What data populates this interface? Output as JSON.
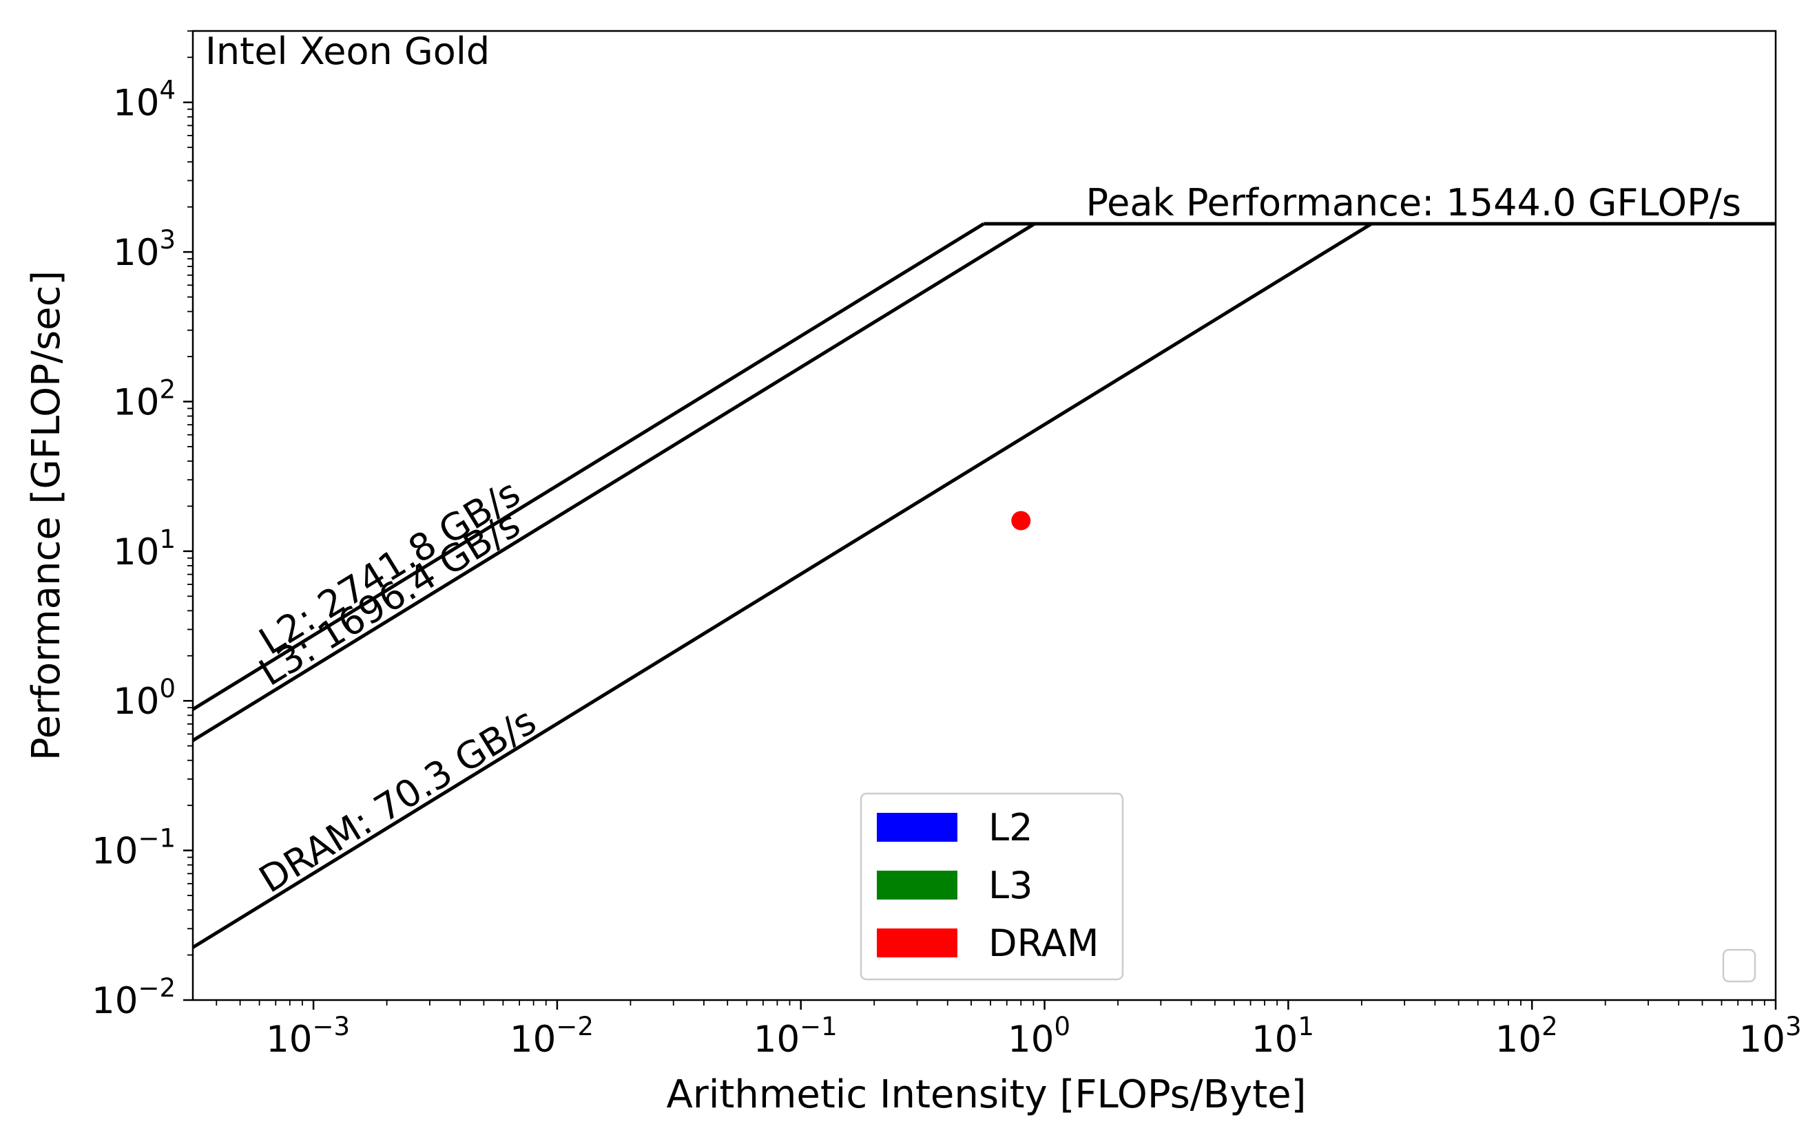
{
  "chart_data": {
    "type": "line",
    "title": "Intel Xeon Gold",
    "xlabel": "Arithmetic Intensity [FLOPs/Byte]",
    "ylabel": "Performance [GFLOP/sec]",
    "xscale": "log",
    "yscale": "log",
    "xlim": [
      0.00032,
      1000
    ],
    "ylim": [
      0.01,
      30000
    ],
    "x_ticks": [
      {
        "base": "10",
        "exp": "−3",
        "value": 0.001
      },
      {
        "base": "10",
        "exp": "−2",
        "value": 0.01
      },
      {
        "base": "10",
        "exp": "−1",
        "value": 0.1
      },
      {
        "base": "10",
        "exp": "0",
        "value": 1
      },
      {
        "base": "10",
        "exp": "1",
        "value": 10
      },
      {
        "base": "10",
        "exp": "2",
        "value": 100
      },
      {
        "base": "10",
        "exp": "3",
        "value": 1000
      }
    ],
    "y_ticks": [
      {
        "base": "10",
        "exp": "−2",
        "value": 0.01
      },
      {
        "base": "10",
        "exp": "−1",
        "value": 0.1
      },
      {
        "base": "10",
        "exp": "0",
        "value": 1
      },
      {
        "base": "10",
        "exp": "1",
        "value": 10
      },
      {
        "base": "10",
        "exp": "2",
        "value": 100
      },
      {
        "base": "10",
        "exp": "3",
        "value": 1000
      },
      {
        "base": "10",
        "exp": "4",
        "value": 10000
      }
    ],
    "peak": {
      "value": 1544.0,
      "label": "Peak Performance: 1544.0 GFLOP/s"
    },
    "roofs": [
      {
        "name": "L2",
        "bandwidth": 2741.8,
        "label": "L2: 2741.8 GB/s"
      },
      {
        "name": "L3",
        "bandwidth": 1696.4,
        "label": "L3: 1696.4 GB/s"
      },
      {
        "name": "DRAM",
        "bandwidth": 70.3,
        "label": "DRAM: 70.3 GB/s"
      }
    ],
    "points": [
      {
        "x": 0.8,
        "y": 16,
        "color": "#ff0000"
      }
    ],
    "legend": {
      "position": "bottom-center",
      "entries": [
        {
          "label": "L2",
          "color": "#0000ff"
        },
        {
          "label": "L3",
          "color": "#008000"
        },
        {
          "label": "DRAM",
          "color": "#ff0000"
        }
      ]
    },
    "grid": false
  }
}
